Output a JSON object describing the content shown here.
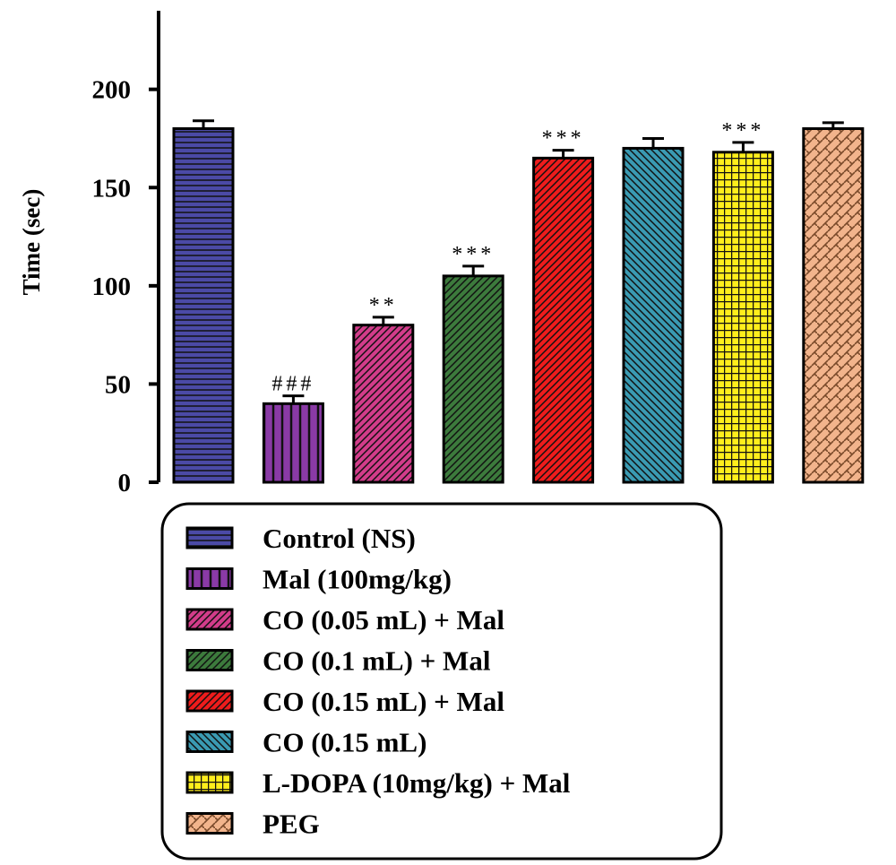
{
  "chart_data": {
    "type": "bar",
    "ylabel": "Time (sec)",
    "xlabel": "",
    "ylim": [
      0,
      240
    ],
    "yticks": [
      0,
      50,
      100,
      150,
      200
    ],
    "grid": false,
    "legend_position": "bottom",
    "series": [
      {
        "name": "Control (NS)",
        "value": 180,
        "error": 4,
        "annotation": "",
        "color": "#4b4aa6",
        "pattern": "hlines"
      },
      {
        "name": "Mal (100mg/kg)",
        "value": 40,
        "error": 4,
        "annotation": "###",
        "color": "#8a3aa6",
        "pattern": "vlines"
      },
      {
        "name": "CO (0.05 mL) + Mal",
        "value": 80,
        "error": 4,
        "annotation": "**",
        "color": "#d23c8a",
        "pattern": "diag"
      },
      {
        "name": "CO (0.1 mL) + Mal",
        "value": 105,
        "error": 5,
        "annotation": "***",
        "color": "#3c7a3c",
        "pattern": "diag"
      },
      {
        "name": "CO (0.15 mL) + Mal",
        "value": 165,
        "error": 4,
        "annotation": "***",
        "color": "#ee1c1c",
        "pattern": "diag"
      },
      {
        "name": "CO (0.15 mL)",
        "value": 170,
        "error": 5,
        "annotation": "",
        "color": "#3a9ab2",
        "pattern": "diag-back"
      },
      {
        "name": "L-DOPA (10mg/kg) + Mal",
        "value": 168,
        "error": 5,
        "annotation": "***",
        "color": "#ffee1c",
        "pattern": "grid"
      },
      {
        "name": "PEG",
        "value": 180,
        "error": 3,
        "annotation": "",
        "color": "#f2b48c",
        "pattern": "weave"
      }
    ]
  }
}
